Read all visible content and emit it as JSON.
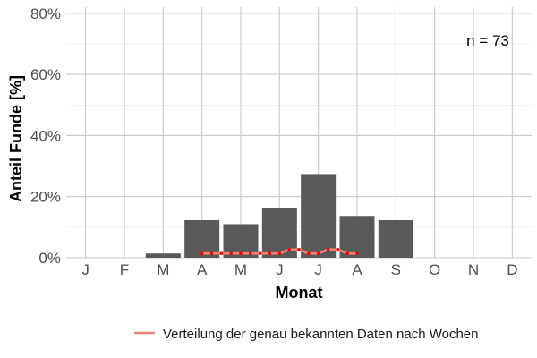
{
  "chart_data": {
    "type": "bar",
    "xlabel": "Monat",
    "ylabel": "Anteil Funde [%]",
    "annotation": "n = 73",
    "categories": [
      "J",
      "F",
      "M",
      "A",
      "M",
      "J",
      "J",
      "A",
      "S",
      "O",
      "N",
      "D"
    ],
    "values": [
      0,
      0,
      1.4,
      12.3,
      11.0,
      16.4,
      27.4,
      13.7,
      12.3,
      0,
      0,
      0
    ],
    "ylim": [
      0,
      82
    ],
    "yticks": [
      0,
      20,
      40,
      60,
      80
    ],
    "ytick_labels": [
      "0%",
      "20%",
      "40%",
      "60%",
      "80%"
    ],
    "grid": true,
    "legend_position": "bottom",
    "bar_color": "#595959",
    "line_series": {
      "name": "Verteilung der genau bekannten Daten nach Wochen",
      "color": "#f08070",
      "point_color": "#e8000b",
      "x": [
        3.0,
        3.25,
        3.5,
        3.75,
        4.0,
        4.25,
        4.5,
        4.75,
        5.0,
        5.25,
        5.5,
        5.75,
        6.0,
        6.25,
        6.5,
        6.75,
        7.0
      ],
      "y": [
        1.4,
        1.4,
        1.4,
        1.4,
        1.4,
        1.4,
        1.4,
        1.4,
        1.4,
        2.7,
        2.7,
        1.4,
        1.4,
        2.7,
        2.7,
        1.4,
        1.4
      ]
    }
  }
}
